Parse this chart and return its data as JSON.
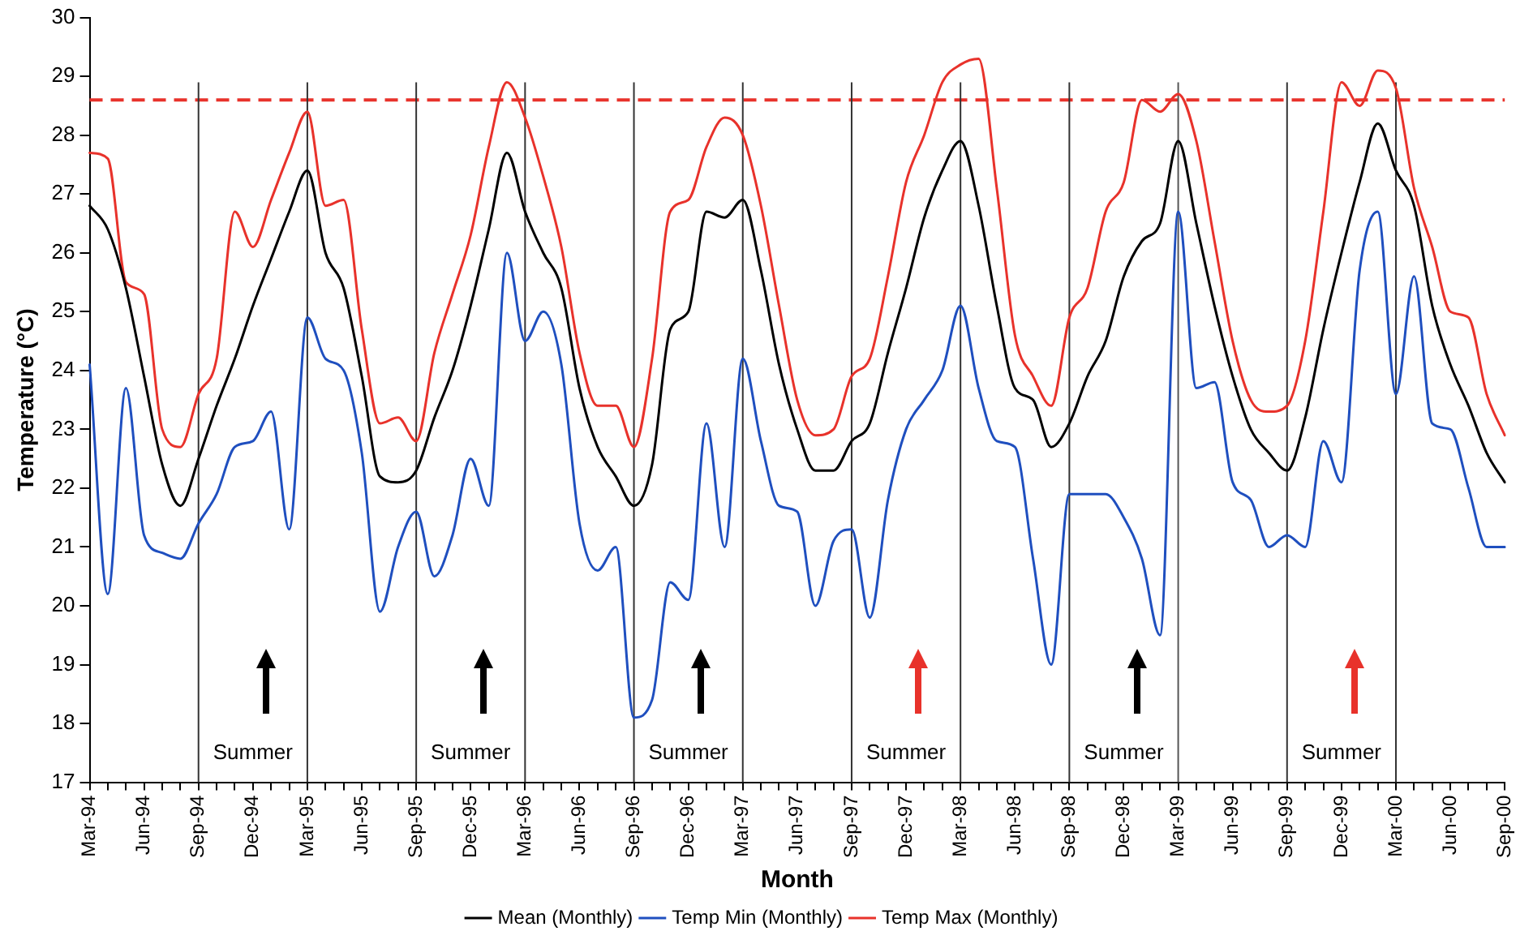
{
  "chart_data": {
    "type": "line",
    "xlabel": "Month",
    "ylabel": "Temperature (°C)",
    "categories": [
      "Mar-94",
      null,
      null,
      "Jun-94",
      null,
      null,
      "Sep-94",
      null,
      null,
      "Dec-94",
      null,
      null,
      "Mar-95",
      null,
      null,
      "Jun-95",
      null,
      null,
      "Sep-95",
      null,
      null,
      "Dec-95",
      null,
      null,
      "Mar-96",
      null,
      null,
      "Jun-96",
      null,
      null,
      "Sep-96",
      null,
      null,
      "Dec-96",
      null,
      null,
      "Mar-97",
      null,
      null,
      "Jun-97",
      null,
      null,
      "Sep-97",
      null,
      null,
      "Dec-97",
      null,
      null,
      "Mar-98",
      null,
      null,
      "Jun-98",
      null,
      null,
      "Sep-98",
      null,
      null,
      "Dec-98",
      null,
      null,
      "Mar-99",
      null,
      null,
      "Jun-99",
      null,
      null,
      "Sep-99",
      null,
      null,
      "Dec-99",
      null,
      null,
      "Mar-00",
      null,
      null,
      "Jun-00",
      null,
      null,
      "Sep-00"
    ],
    "series": [
      {
        "name": "Mean (Monthly)",
        "color": "#000000",
        "values": [
          26.8,
          26.4,
          25.4,
          23.9,
          22.4,
          21.7,
          22.5,
          23.4,
          24.2,
          25.1,
          25.9,
          26.7,
          27.4,
          26.0,
          25.4,
          23.9,
          22.2,
          22.1,
          22.3,
          23.2,
          24.0,
          25.1,
          26.4,
          27.7,
          26.7,
          26.0,
          25.4,
          23.7,
          22.7,
          22.2,
          21.7,
          22.4,
          24.7,
          25.0,
          26.7,
          26.6,
          26.9,
          25.7,
          24.1,
          23.0,
          22.3,
          22.3,
          22.8,
          23.1,
          24.3,
          25.4,
          26.6,
          27.4,
          27.9,
          26.8,
          25.1,
          23.7,
          23.5,
          22.7,
          23.1,
          23.9,
          24.5,
          25.6,
          26.2,
          26.5,
          27.9,
          26.5,
          25.1,
          23.9,
          23.0,
          22.6,
          22.3,
          23.2,
          24.7,
          26.0,
          27.2,
          28.2,
          27.4,
          26.8,
          25.1,
          24.1,
          23.4,
          22.6,
          22.1
        ]
      },
      {
        "name": "Temp Min (Monthly)",
        "color": "#1f4fbf",
        "values": [
          24.1,
          20.2,
          23.7,
          21.2,
          20.9,
          20.8,
          21.4,
          21.9,
          22.7,
          22.8,
          23.3,
          21.3,
          24.9,
          24.2,
          24.0,
          22.6,
          19.9,
          21.0,
          21.6,
          20.5,
          21.2,
          22.5,
          21.7,
          26.0,
          24.5,
          25.0,
          24.1,
          21.4,
          20.6,
          21.0,
          18.1,
          18.4,
          20.4,
          20.1,
          23.1,
          21.0,
          24.2,
          22.8,
          21.7,
          21.6,
          20.0,
          21.1,
          21.3,
          19.8,
          21.8,
          23.0,
          23.5,
          24.0,
          25.1,
          23.7,
          22.8,
          22.7,
          20.8,
          19.0,
          21.9,
          21.9,
          21.9,
          21.5,
          20.8,
          19.5,
          26.7,
          23.7,
          23.8,
          22.1,
          21.8,
          21.0,
          21.2,
          21.0,
          22.8,
          22.1,
          25.7,
          26.7,
          23.6,
          25.6,
          23.1,
          23.0,
          22.0,
          21.0,
          21.0
        ]
      },
      {
        "name": "Temp Max (Monthly)",
        "color": "#e8322b",
        "values": [
          27.7,
          27.6,
          25.5,
          25.3,
          23.0,
          22.7,
          23.6,
          24.2,
          26.7,
          26.1,
          26.9,
          27.7,
          28.4,
          26.8,
          26.9,
          24.7,
          23.1,
          23.2,
          22.8,
          24.3,
          25.3,
          26.3,
          27.8,
          28.9,
          28.3,
          27.3,
          26.1,
          24.3,
          23.4,
          23.4,
          22.7,
          24.2,
          26.7,
          26.9,
          27.8,
          28.3,
          28.0,
          26.8,
          25.1,
          23.5,
          22.9,
          23.0,
          23.9,
          24.2,
          25.6,
          27.2,
          28.0,
          28.9,
          29.2,
          29.3,
          27.1,
          24.6,
          23.9,
          23.4,
          24.9,
          25.4,
          26.7,
          27.2,
          28.6,
          28.4,
          28.7,
          27.9,
          26.2,
          24.5,
          23.5,
          23.3,
          23.4,
          24.5,
          26.7,
          28.9,
          28.5,
          29.1,
          28.8,
          27.1,
          26.1,
          25.0,
          24.9,
          23.6,
          22.9
        ]
      }
    ],
    "ylim": [
      17,
      30
    ],
    "yticks": [
      17,
      18,
      19,
      20,
      21,
      22,
      23,
      24,
      25,
      26,
      27,
      28,
      29,
      30
    ],
    "ref_lines": [
      {
        "axis": "y",
        "value": 28.6,
        "color": "#e8322b",
        "line_style": "dashed"
      },
      {
        "axis": "x",
        "value": "Sep-94",
        "color": "#333333"
      },
      {
        "axis": "x",
        "value": "Mar-95",
        "color": "#333333"
      },
      {
        "axis": "x",
        "value": "Sep-95",
        "color": "#333333"
      },
      {
        "axis": "x",
        "value": "Mar-96",
        "color": "#333333"
      },
      {
        "axis": "x",
        "value": "Sep-96",
        "color": "#333333"
      },
      {
        "axis": "x",
        "value": "Mar-97",
        "color": "#333333"
      },
      {
        "axis": "x",
        "value": "Sep-97",
        "color": "#333333"
      },
      {
        "axis": "x",
        "value": "Mar-98",
        "color": "#333333"
      },
      {
        "axis": "x",
        "value": "Sep-98",
        "color": "#333333"
      },
      {
        "axis": "x",
        "value": "Mar-99",
        "color": "#555555"
      },
      {
        "axis": "x",
        "value": "Sep-99",
        "color": "#333333"
      },
      {
        "axis": "x",
        "value": "Mar-00",
        "color": "#333333"
      }
    ],
    "annotations": [
      "Summer",
      "Summer",
      "Summer",
      "Summer",
      "Summer",
      "Summer"
    ],
    "legend": "bottom",
    "grid": false,
    "marker": "none",
    "line_style": "solid"
  }
}
